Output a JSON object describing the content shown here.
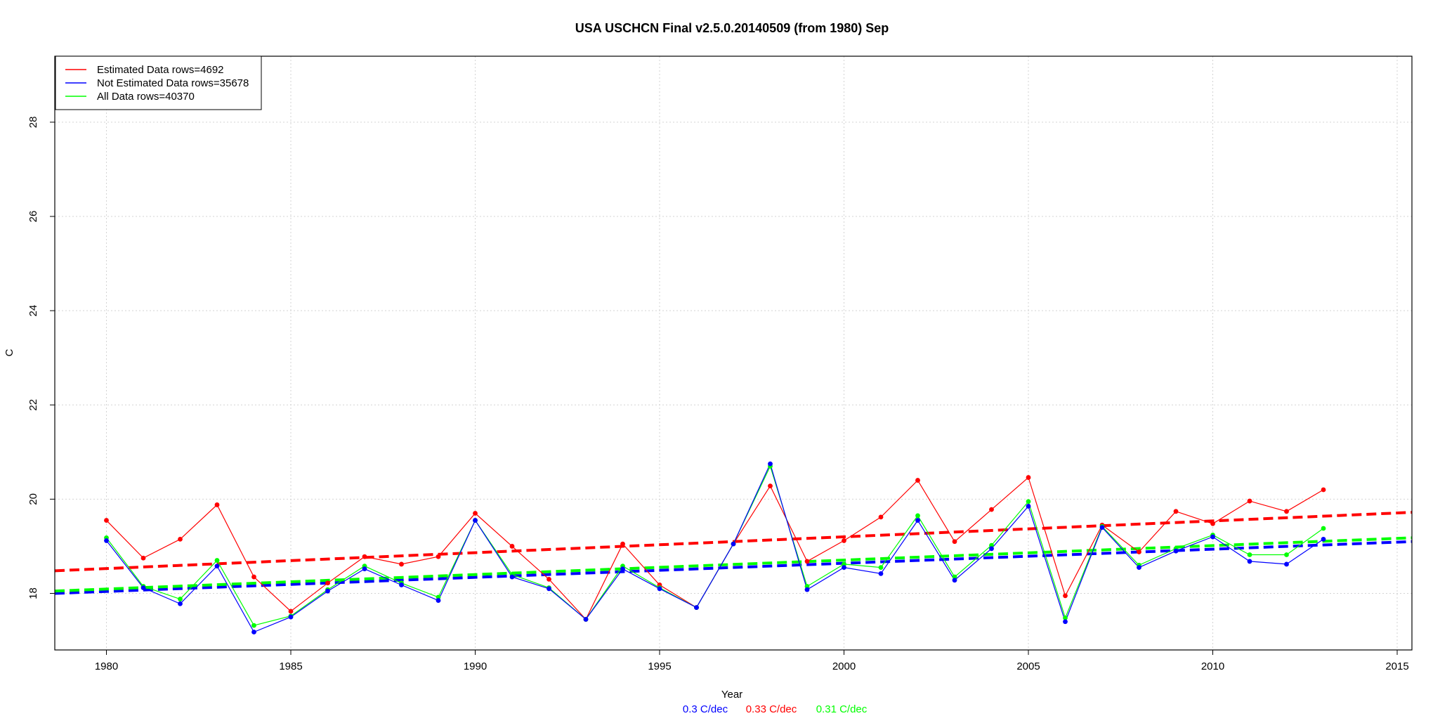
{
  "chart_data": {
    "type": "line",
    "title": "USA USCHCN Final v2.5.0.20140509 (from 1980) Sep",
    "xlabel": "Year",
    "ylabel": "C",
    "xlim": [
      1978.6,
      2015.4
    ],
    "ylim": [
      16.8,
      29.4
    ],
    "x_ticks": [
      1980,
      1985,
      1990,
      1995,
      2000,
      2005,
      2010,
      2015
    ],
    "y_ticks": [
      18,
      20,
      22,
      24,
      26,
      28
    ],
    "grid": true,
    "legend_position": "top-left",
    "x": [
      1980,
      1981,
      1982,
      1983,
      1984,
      1985,
      1986,
      1987,
      1988,
      1989,
      1990,
      1991,
      1992,
      1993,
      1994,
      1995,
      1996,
      1997,
      1998,
      1999,
      2000,
      2001,
      2002,
      2003,
      2004,
      2005,
      2006,
      2007,
      2008,
      2009,
      2010,
      2011,
      2012,
      2013
    ],
    "series": [
      {
        "name": "Estimated Data rows=4692",
        "color": "#ff0000",
        "values": [
          19.55,
          18.75,
          19.15,
          19.88,
          18.35,
          17.62,
          18.22,
          18.78,
          18.62,
          18.78,
          19.7,
          19.0,
          18.3,
          17.45,
          19.05,
          18.18,
          17.7,
          19.05,
          20.28,
          18.68,
          19.12,
          19.62,
          20.4,
          19.1,
          19.78,
          20.46,
          17.95,
          19.45,
          18.88,
          19.74,
          19.48,
          19.96,
          19.74,
          20.2
        ],
        "trend": {
          "start": [
            1978.6,
            18.48
          ],
          "end": [
            2015.4,
            19.72
          ],
          "slope_label": "0.33 C/dec"
        }
      },
      {
        "name": "Not Estimated Data rows=35678",
        "color": "#0000ff",
        "values": [
          19.12,
          18.12,
          17.78,
          18.58,
          17.18,
          17.5,
          18.05,
          18.52,
          18.18,
          17.85,
          19.55,
          18.35,
          18.1,
          17.45,
          18.52,
          18.1,
          17.7,
          19.05,
          20.75,
          18.08,
          18.55,
          18.42,
          19.55,
          18.28,
          18.95,
          19.85,
          17.4,
          19.4,
          18.55,
          18.9,
          19.2,
          18.68,
          18.62,
          19.15
        ],
        "trend": {
          "start": [
            1978.6,
            18.0
          ],
          "end": [
            2015.4,
            19.1
          ],
          "slope_label": "0.3 C/dec"
        }
      },
      {
        "name": "All Data rows=40370",
        "color": "#00ff00",
        "values": [
          19.18,
          18.15,
          17.88,
          18.7,
          17.32,
          17.52,
          18.08,
          18.58,
          18.22,
          17.92,
          19.55,
          18.4,
          18.12,
          17.45,
          18.58,
          18.12,
          17.7,
          19.05,
          20.7,
          18.15,
          18.62,
          18.55,
          19.65,
          18.35,
          19.02,
          19.95,
          17.48,
          19.42,
          18.6,
          18.95,
          19.24,
          18.82,
          18.82,
          19.38
        ],
        "trend": {
          "start": [
            1978.6,
            18.05
          ],
          "end": [
            2015.4,
            19.18
          ],
          "slope_label": "0.31 C/dec"
        }
      }
    ],
    "slope_labels_order": [
      "Not Estimated Data rows=35678",
      "Estimated Data rows=4692",
      "All Data rows=40370"
    ]
  }
}
